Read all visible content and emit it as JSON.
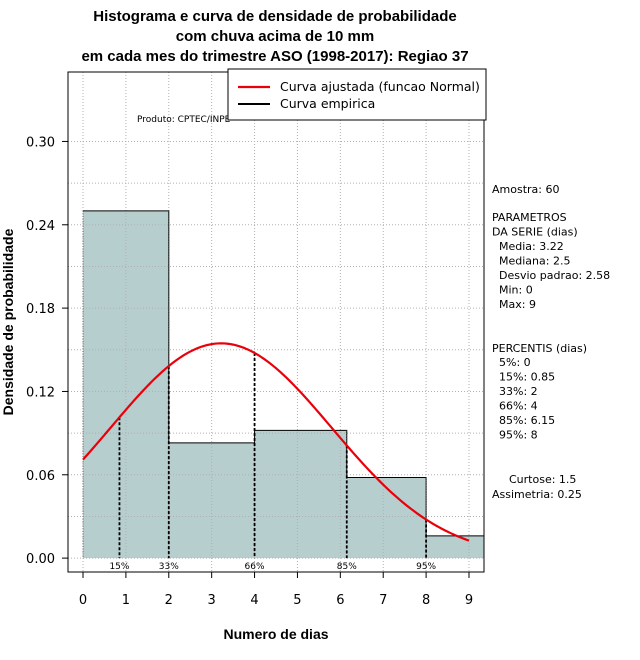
{
  "chart_data": {
    "type": "bar",
    "title_lines": [
      "Histograma e curva de densidade de probabilidade",
      "com chuva acima de 10 mm",
      "em cada mes do trimestre ASO (1998-2017): Regiao 37"
    ],
    "xlabel": "Numero de dias",
    "ylabel": "Densidade de probabilidade",
    "xlim": [
      -0.35,
      9.35
    ],
    "ylim": [
      -0.01,
      0.35
    ],
    "x_ticks": [
      0,
      1,
      2,
      3,
      4,
      5,
      6,
      7,
      8,
      9
    ],
    "y_ticks": [
      0.0,
      0.06,
      0.12,
      0.18,
      0.24,
      0.3
    ],
    "y_tick_labels": [
      "0.00",
      "0.06",
      "0.12",
      "0.18",
      "0.24",
      "0.30"
    ],
    "grid": true,
    "histogram": {
      "bins": [
        [
          0,
          2
        ],
        [
          2,
          4
        ],
        [
          4,
          6.15
        ],
        [
          6.15,
          8
        ],
        [
          8,
          9.35
        ]
      ],
      "values": [
        0.25,
        0.083,
        0.092,
        0.058,
        0.016
      ],
      "fill_color": "#b6cece"
    },
    "fitted_curve": {
      "name": "Curva ajustada (funcao Normal)",
      "distribution": "normal",
      "mean": 3.22,
      "sd": 2.58,
      "x_range": [
        0,
        9
      ],
      "color": "#e8000b"
    },
    "empirical_curve": {
      "name": "Curva empirica",
      "color": "#000000"
    },
    "percentile_markers": [
      {
        "label": "15%",
        "x": 0.85
      },
      {
        "label": "33%",
        "x": 2
      },
      {
        "label": "66%",
        "x": 4
      },
      {
        "label": "85%",
        "x": 6.15
      },
      {
        "label": "95%",
        "x": 8
      }
    ],
    "credit": "Produto: CPTEC/INPE",
    "legend_position": "top-right"
  },
  "stats": {
    "sample": "Amostra: 60",
    "params_header": [
      " PARAMETROS",
      "DA SERIE (dias)"
    ],
    "params": [
      "Media: 3.22",
      "Mediana: 2.5",
      "Desvio padrao: 2.58",
      "Min: 0",
      "Max: 9"
    ],
    "percentiles_header": "PERCENTIS (dias)",
    "percentiles": [
      "5%: 0",
      "15%: 0.85",
      "33%: 2",
      "66%: 4",
      "85%: 6.15",
      "95%: 8"
    ],
    "kurtosis": "Curtose: 1.5",
    "skewness": "Assimetria: 0.25"
  }
}
